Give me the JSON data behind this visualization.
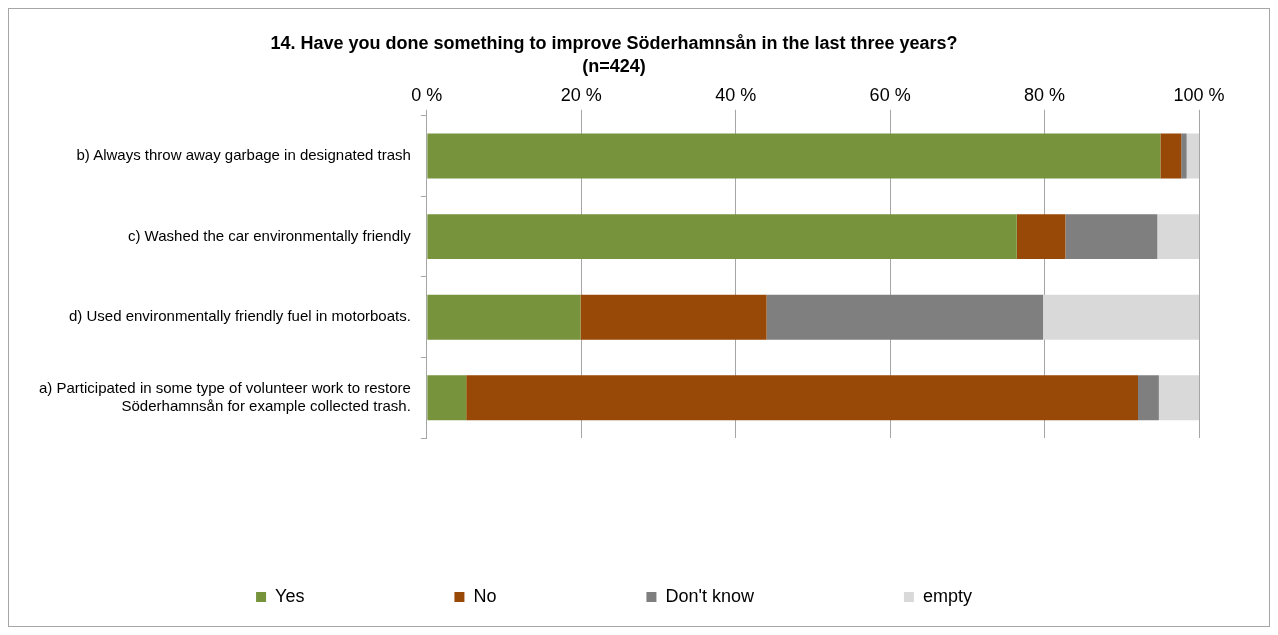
{
  "chart_data": {
    "type": "bar",
    "orientation": "horizontal",
    "stacked": true,
    "title": "14. Have you done something to improve Söderhamnsån in the last three years?",
    "subtitle": "(n=424)",
    "categories": [
      "b) Always throw away garbage in designated trash",
      "c) Washed the car environmentally friendly",
      "d) Used environmentally friendly fuel in motorboats.",
      "a) Participated in some type of volunteer work to restore Söderhamnsån for example collected trash."
    ],
    "series": [
      {
        "name": "Yes",
        "color": "#77933c",
        "values": [
          95,
          76.4,
          19.9,
          5.1
        ]
      },
      {
        "name": "No",
        "color": "#984807",
        "values": [
          2.7,
          6.3,
          24.1,
          87
        ]
      },
      {
        "name": "Don't know",
        "color": "#7f7f7f",
        "values": [
          0.7,
          11.9,
          35.8,
          2.7
        ]
      },
      {
        "name": "empty",
        "color": "#d9d9d9",
        "values": [
          1.6,
          5.4,
          20.2,
          5.2
        ]
      }
    ],
    "xlim": [
      0,
      100
    ],
    "xticks": [
      {
        "value": 0,
        "label": "0 %"
      },
      {
        "value": 20,
        "label": "20 %"
      },
      {
        "value": 40,
        "label": "40 %"
      },
      {
        "value": 60,
        "label": "60 %"
      },
      {
        "value": 80,
        "label": "80 %"
      },
      {
        "value": 100,
        "label": "100 %"
      }
    ],
    "grid": "x",
    "legend": "bottom"
  }
}
